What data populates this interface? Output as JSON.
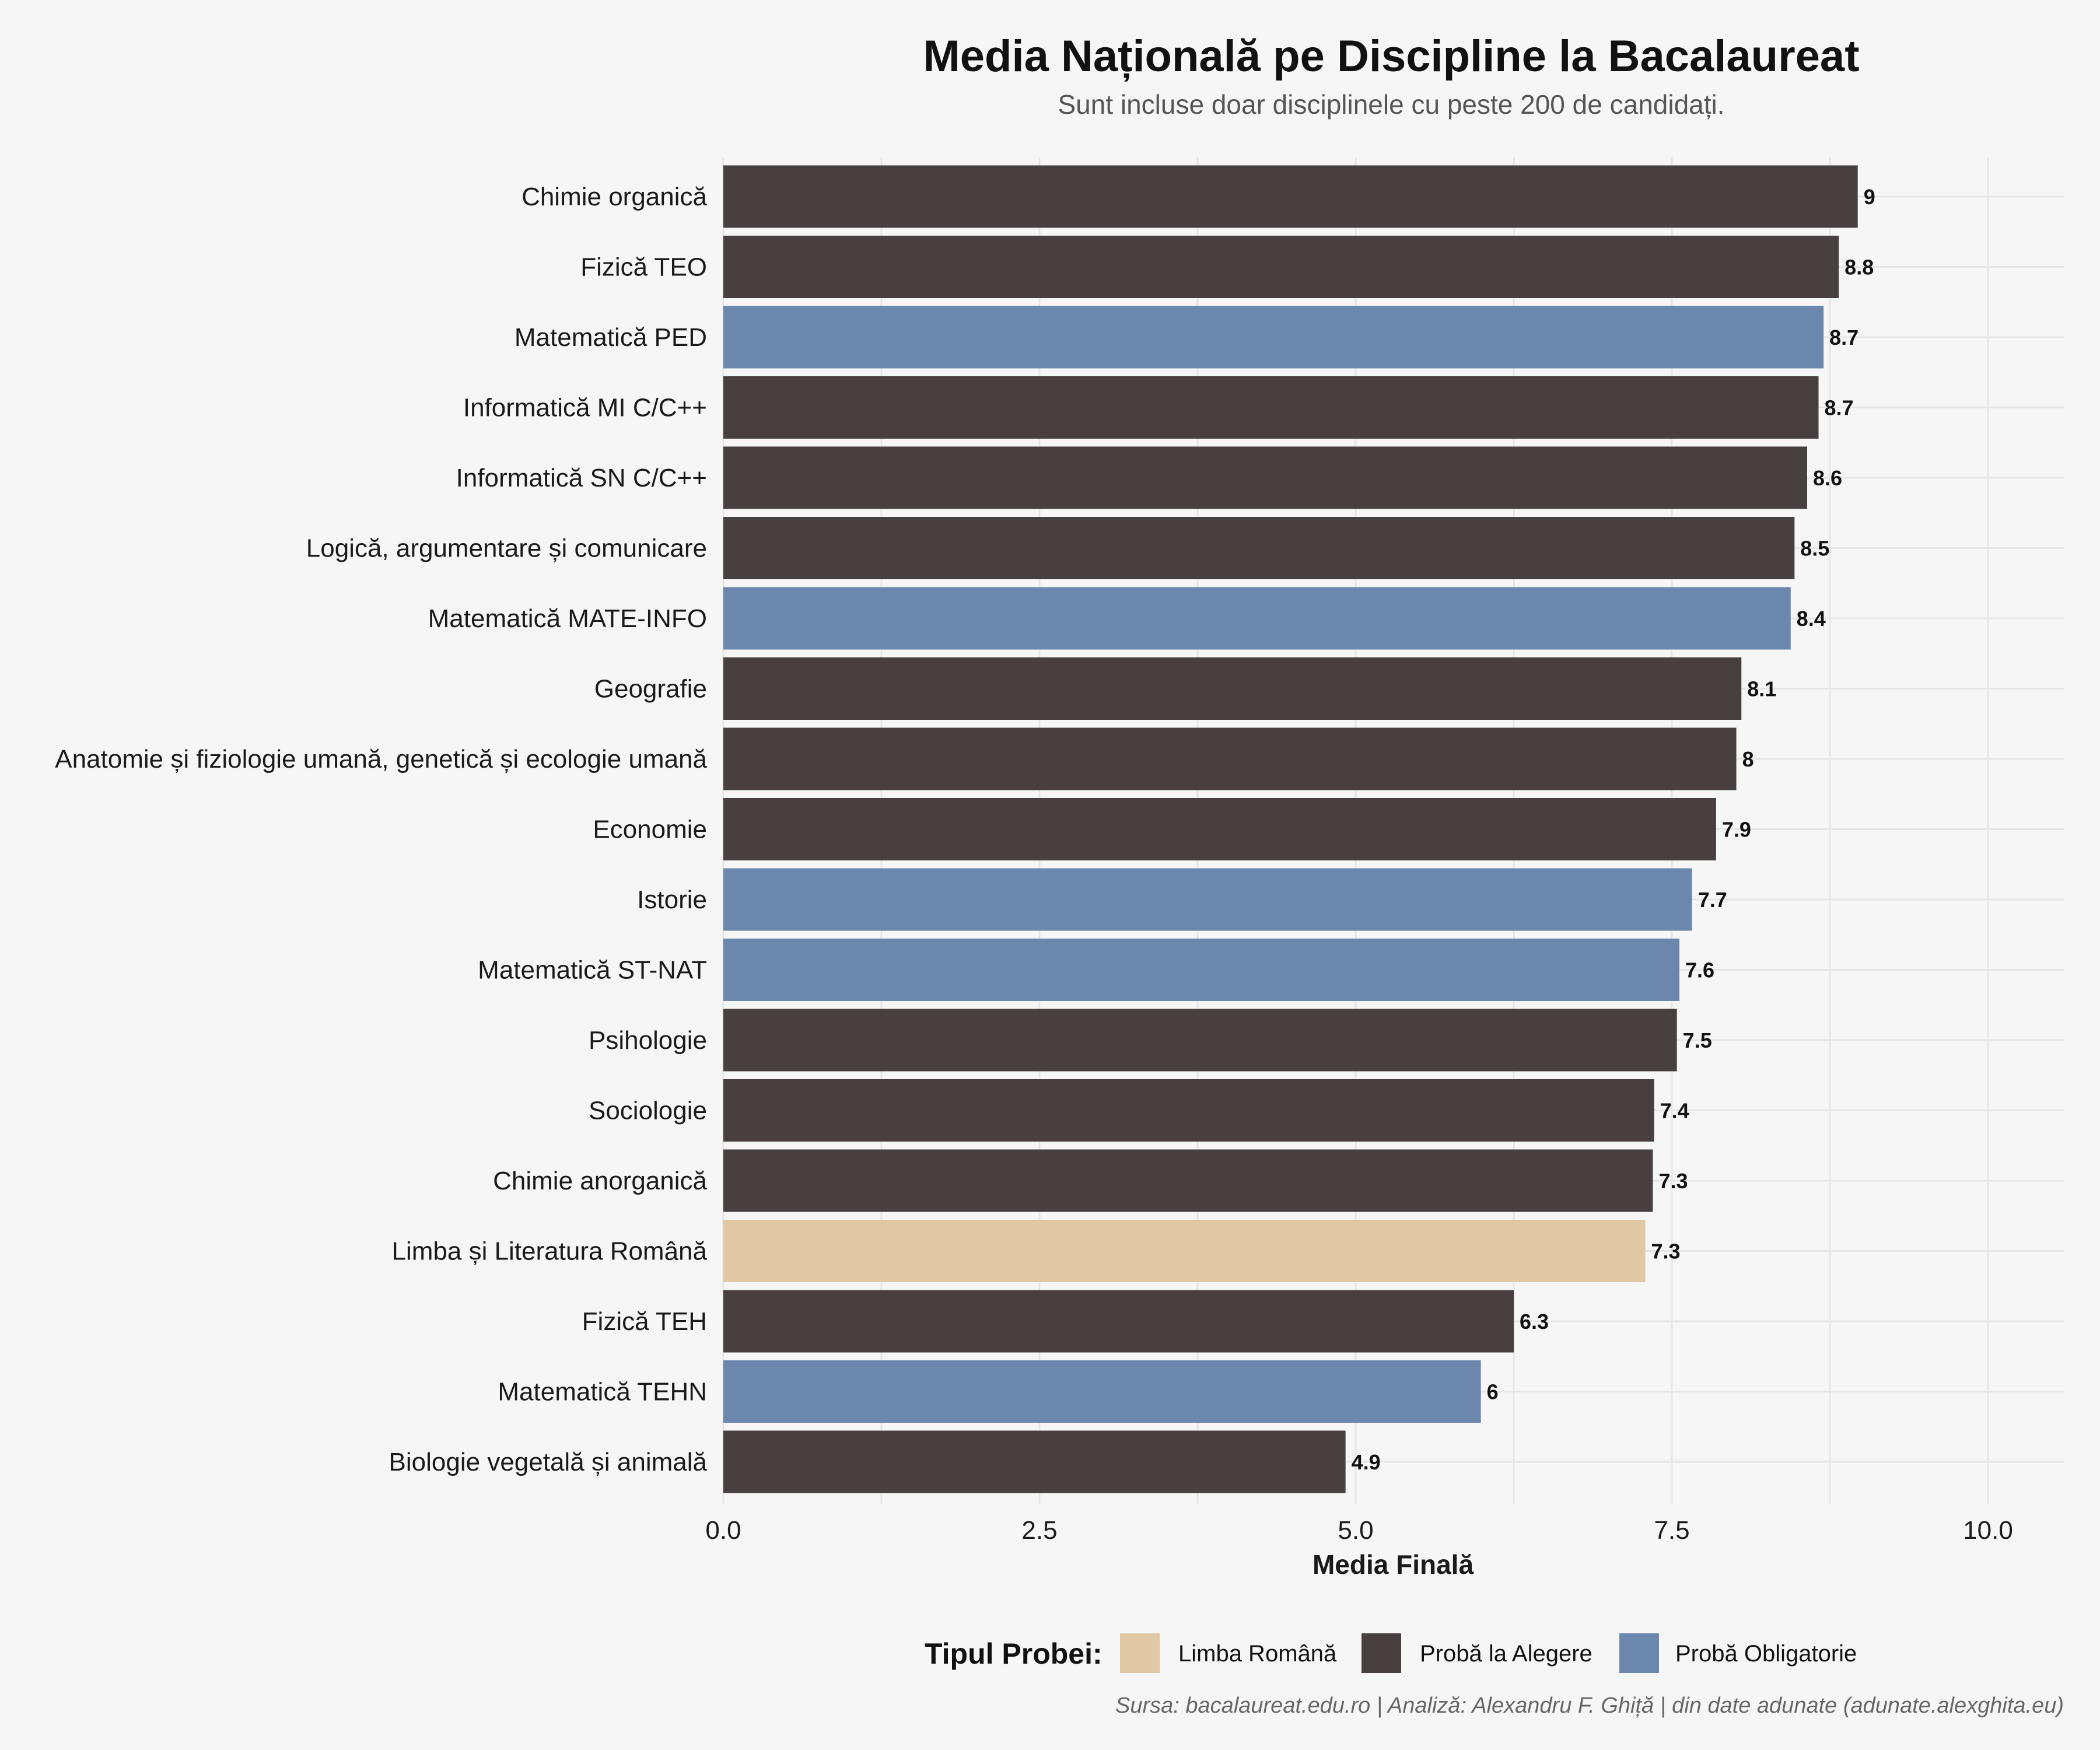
{
  "chart_data": {
    "type": "bar",
    "orientation": "horizontal",
    "title": "Media Națională pe Discipline la Bacalaureat",
    "subtitle": "Sunt incluse doar disciplinele cu peste 200 de candidați.",
    "xlabel": "Media Finală",
    "xlim": [
      0,
      10.6
    ],
    "xticks": [
      0,
      2.5,
      5,
      7.5,
      10
    ],
    "xtick_labels": [
      "0.0",
      "2.5",
      "5.0",
      "7.5",
      "10.0"
    ],
    "grid": true,
    "legend": {
      "title": "Tipul Probei:",
      "placement": "bottom",
      "entries": [
        {
          "name": "Limba Română",
          "color": "#e0c8a4"
        },
        {
          "name": "Probă la Alegere",
          "color": "#483f40"
        },
        {
          "name": "Probă Obligatorie",
          "color": "#6b87ad"
        }
      ]
    },
    "caption": "Sursa: bacalaureat.edu.ro | Analiză: Alexandru F. Ghiță | din date adunate (adunate.alexghita.eu)",
    "bars": [
      {
        "category": "Chimie organică",
        "value": 8.97,
        "label": "9",
        "type": "Probă la Alegere"
      },
      {
        "category": "Fizică TEO",
        "value": 8.82,
        "label": "8.8",
        "type": "Probă la Alegere"
      },
      {
        "category": "Matematică PED",
        "value": 8.7,
        "label": "8.7",
        "type": "Probă Obligatorie"
      },
      {
        "category": "Informatică MI C/C++",
        "value": 8.66,
        "label": "8.7",
        "type": "Probă la Alegere"
      },
      {
        "category": "Informatică SN C/C++",
        "value": 8.57,
        "label": "8.6",
        "type": "Probă la Alegere"
      },
      {
        "category": "Logică, argumentare și comunicare",
        "value": 8.47,
        "label": "8.5",
        "type": "Probă la Alegere"
      },
      {
        "category": "Matematică MATE-INFO",
        "value": 8.44,
        "label": "8.4",
        "type": "Probă Obligatorie"
      },
      {
        "category": "Geografie",
        "value": 8.05,
        "label": "8.1",
        "type": "Probă la Alegere"
      },
      {
        "category": "Anatomie și fiziologie umană, genetică și ecologie umană",
        "value": 8.01,
        "label": "8",
        "type": "Probă la Alegere"
      },
      {
        "category": "Economie",
        "value": 7.85,
        "label": "7.9",
        "type": "Probă la Alegere"
      },
      {
        "category": "Istorie",
        "value": 7.66,
        "label": "7.7",
        "type": "Probă Obligatorie"
      },
      {
        "category": "Matematică ST-NAT",
        "value": 7.56,
        "label": "7.6",
        "type": "Probă Obligatorie"
      },
      {
        "category": "Psihologie",
        "value": 7.54,
        "label": "7.5",
        "type": "Probă la Alegere"
      },
      {
        "category": "Sociologie",
        "value": 7.36,
        "label": "7.4",
        "type": "Probă la Alegere"
      },
      {
        "category": "Chimie anorganică",
        "value": 7.35,
        "label": "7.3",
        "type": "Probă la Alegere"
      },
      {
        "category": "Limba și Literatura Română",
        "value": 7.29,
        "label": "7.3",
        "type": "Limba Română"
      },
      {
        "category": "Fizică TEH",
        "value": 6.25,
        "label": "6.3",
        "type": "Probă la Alegere"
      },
      {
        "category": "Matematică TEHN",
        "value": 5.99,
        "label": "6",
        "type": "Probă Obligatorie"
      },
      {
        "category": "Biologie vegetală și animală",
        "value": 4.92,
        "label": "4.9",
        "type": "Probă la Alegere"
      }
    ]
  }
}
